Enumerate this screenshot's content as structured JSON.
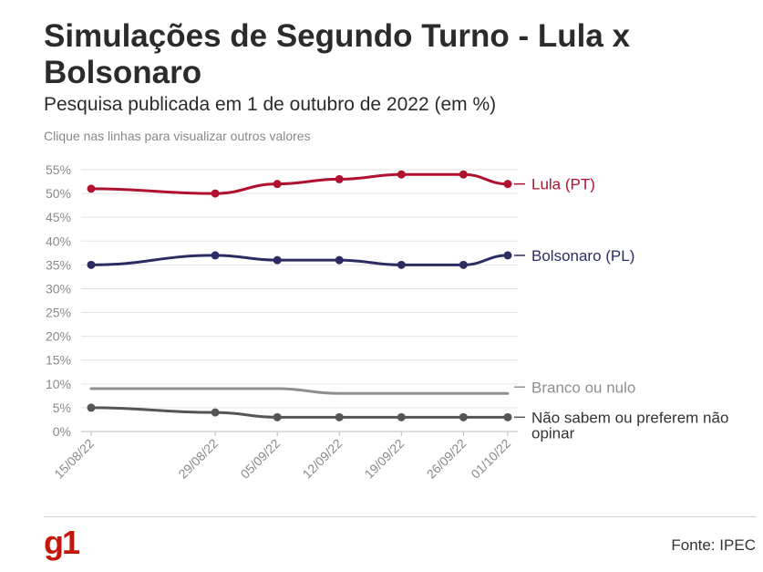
{
  "header": {
    "title": "Simulações de Segundo Turno - Lula x Bolsonaro",
    "subtitle": "Pesquisa publicada em 1 de outubro de 2022 (em %)",
    "hint": "Clique nas linhas para visualizar outros valores"
  },
  "footer": {
    "logo": "g1",
    "source": "Fonte: IPEC"
  },
  "chart_data": {
    "type": "line",
    "x": [
      "15/08/22",
      "29/08/22",
      "05/09/22",
      "12/09/22",
      "19/09/22",
      "26/09/22",
      "01/10/22"
    ],
    "x_dates": [
      "2022-08-15",
      "2022-08-29",
      "2022-09-05",
      "2022-09-12",
      "2022-09-19",
      "2022-09-26",
      "2022-10-01"
    ],
    "ylim": [
      0,
      55
    ],
    "yticks": [
      "0%",
      "5%",
      "10%",
      "15%",
      "20%",
      "25%",
      "30%",
      "35%",
      "40%",
      "45%",
      "50%",
      "55%"
    ],
    "grid": true,
    "series": [
      {
        "name": "Lula (PT)",
        "color": "#b2102f",
        "markers": true,
        "values": [
          51,
          50,
          52,
          53,
          54,
          54,
          52
        ]
      },
      {
        "name": "Bolsonaro (PL)",
        "color": "#2c2c63",
        "markers": true,
        "values": [
          35,
          37,
          36,
          36,
          35,
          35,
          37
        ]
      },
      {
        "name": "Branco ou nulo",
        "color": "#8f8f8f",
        "markers": false,
        "values": [
          9,
          9,
          9,
          8,
          8,
          8,
          8
        ]
      },
      {
        "name": "Não sabem ou preferem não opinar",
        "color": "#555555",
        "markers": true,
        "values": [
          5,
          4,
          3,
          3,
          3,
          3,
          3
        ]
      }
    ]
  }
}
